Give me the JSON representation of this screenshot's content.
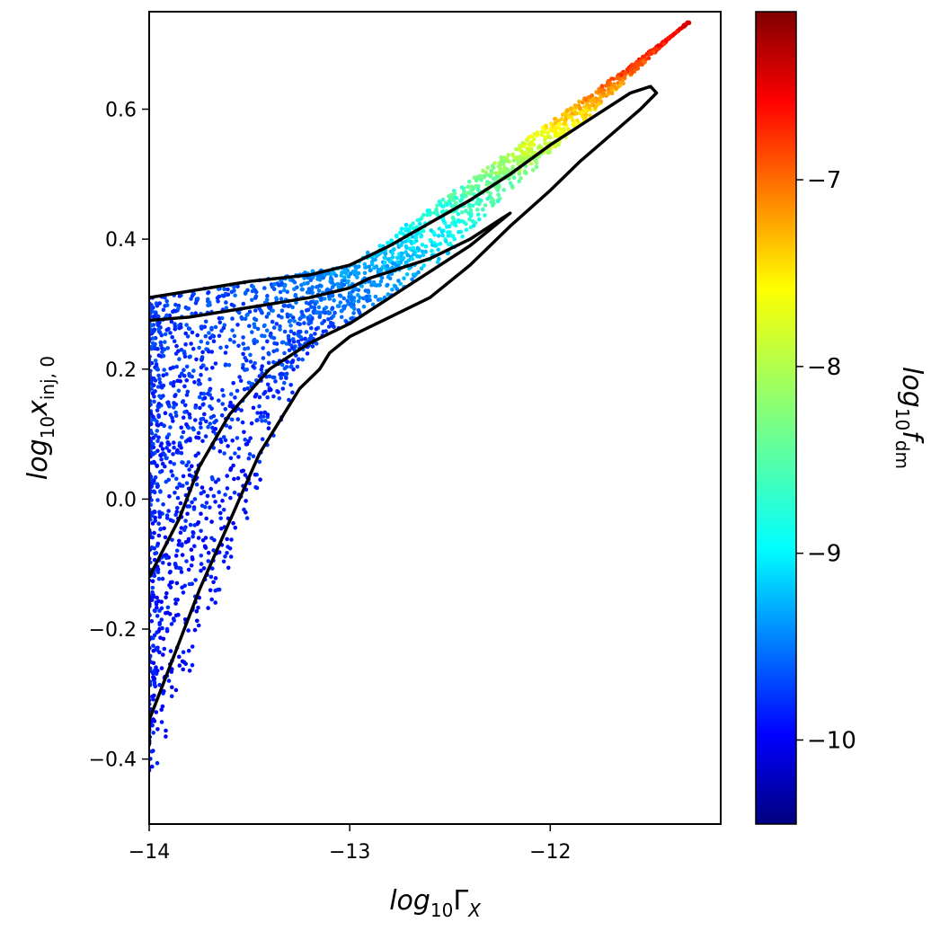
{
  "chart_data": {
    "type": "scatter",
    "xlabel": {
      "base": "log",
      "sub": "10",
      "symbol": "Γ",
      "symsub": "X"
    },
    "ylabel": {
      "base": "log",
      "sub": "10",
      "symbol": "x",
      "symsub": "inj, 0"
    },
    "colorbar_label": {
      "base": "log",
      "sub": "10",
      "symbol": "f",
      "symsub": "dm"
    },
    "xlim": [
      -14.0,
      -11.15
    ],
    "ylim": [
      -0.5,
      0.75
    ],
    "xticks": [
      -14,
      -13,
      -12
    ],
    "xtick_labels": [
      "−14",
      "−13",
      "−12"
    ],
    "yticks": [
      -0.4,
      -0.2,
      0.0,
      0.2,
      0.4,
      0.6
    ],
    "ytick_labels": [
      "−0.4",
      "−0.2",
      "0.0",
      "0.2",
      "0.4",
      "0.6"
    ],
    "colorbar": {
      "colormap": "jet",
      "range": [
        -10.45,
        -6.1
      ],
      "ticks": [
        -10,
        -9,
        -8,
        -7
      ],
      "tick_labels": [
        "−10",
        "−9",
        "−8",
        "−7"
      ]
    },
    "contours": [
      {
        "name": "outer",
        "color": "#000000",
        "points": [
          [
            -14.0,
            0.31
          ],
          [
            -13.8,
            0.32
          ],
          [
            -13.5,
            0.335
          ],
          [
            -13.2,
            0.345
          ],
          [
            -13.0,
            0.36
          ],
          [
            -12.8,
            0.39
          ],
          [
            -12.6,
            0.425
          ],
          [
            -12.4,
            0.46
          ],
          [
            -12.2,
            0.5
          ],
          [
            -12.0,
            0.545
          ],
          [
            -11.8,
            0.585
          ],
          [
            -11.6,
            0.625
          ],
          [
            -11.5,
            0.635
          ],
          [
            -11.47,
            0.625
          ],
          [
            -11.55,
            0.6
          ],
          [
            -11.7,
            0.56
          ],
          [
            -11.85,
            0.52
          ],
          [
            -12.0,
            0.475
          ],
          [
            -12.2,
            0.42
          ],
          [
            -12.4,
            0.36
          ],
          [
            -12.6,
            0.31
          ],
          [
            -12.8,
            0.28
          ],
          [
            -13.0,
            0.25
          ],
          [
            -13.1,
            0.225
          ],
          [
            -13.15,
            0.2
          ],
          [
            -13.25,
            0.17
          ],
          [
            -13.35,
            0.12
          ],
          [
            -13.45,
            0.07
          ],
          [
            -13.55,
            0.0
          ],
          [
            -13.65,
            -0.07
          ],
          [
            -13.75,
            -0.14
          ],
          [
            -13.85,
            -0.22
          ],
          [
            -13.95,
            -0.3
          ],
          [
            -14.0,
            -0.34
          ],
          [
            -14.0,
            -0.38
          ]
        ]
      },
      {
        "name": "inner",
        "color": "#000000",
        "points": [
          [
            -14.0,
            -0.12
          ],
          [
            -13.85,
            -0.03
          ],
          [
            -13.75,
            0.05
          ],
          [
            -13.6,
            0.13
          ],
          [
            -13.4,
            0.2
          ],
          [
            -13.2,
            0.24
          ],
          [
            -13.0,
            0.27
          ],
          [
            -12.8,
            0.31
          ],
          [
            -12.6,
            0.35
          ],
          [
            -12.4,
            0.39
          ],
          [
            -12.2,
            0.44
          ],
          [
            -12.25,
            0.43
          ],
          [
            -12.4,
            0.4
          ],
          [
            -12.6,
            0.37
          ],
          [
            -12.8,
            0.35
          ],
          [
            -12.9,
            0.34
          ],
          [
            -13.0,
            0.325
          ],
          [
            -13.2,
            0.31
          ],
          [
            -13.5,
            0.295
          ],
          [
            -13.8,
            0.28
          ],
          [
            -14.0,
            0.275
          ]
        ]
      }
    ]
  }
}
